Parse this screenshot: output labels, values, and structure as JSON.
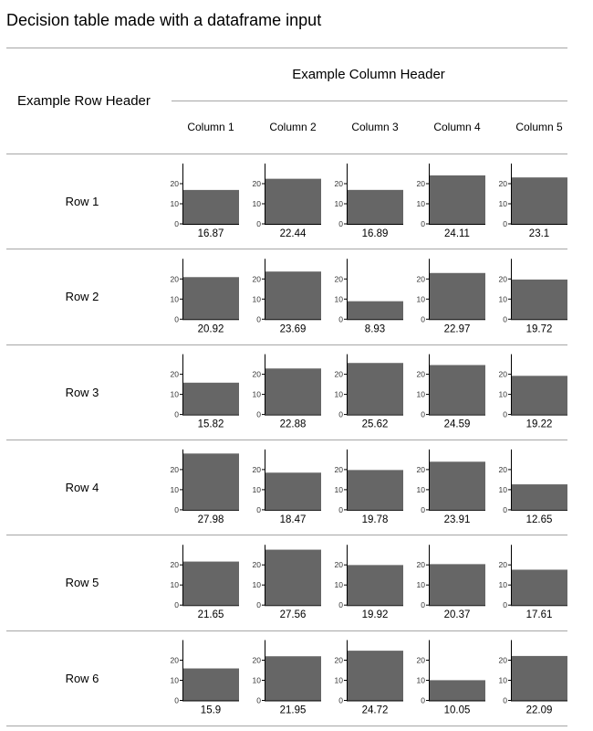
{
  "title": "Decision table made with a dataframe input",
  "column_header": "Example Column Header",
  "row_header": "Example Row Header",
  "colors": {
    "bar": "#666666",
    "rule": "#a6a6a6",
    "axis": "#000000"
  },
  "chart_data": {
    "type": "bar",
    "columns": [
      "Column 1",
      "Column 2",
      "Column 3",
      "Column 4",
      "Column 5"
    ],
    "rows": [
      {
        "name": "Row 1",
        "values": [
          16.87,
          22.44,
          16.89,
          24.11,
          23.1
        ]
      },
      {
        "name": "Row 2",
        "values": [
          20.92,
          23.69,
          8.93,
          22.97,
          19.72
        ]
      },
      {
        "name": "Row 3",
        "values": [
          15.82,
          22.88,
          25.62,
          24.59,
          19.22
        ]
      },
      {
        "name": "Row 4",
        "values": [
          27.98,
          18.47,
          19.78,
          23.91,
          12.65
        ]
      },
      {
        "name": "Row 5",
        "values": [
          21.65,
          27.56,
          19.92,
          20.37,
          17.61
        ]
      },
      {
        "name": "Row 6",
        "values": [
          15.9,
          21.95,
          24.72,
          10.05,
          22.09
        ]
      }
    ],
    "yticks": [
      0,
      10,
      20
    ],
    "ylim": [
      0,
      30
    ]
  }
}
